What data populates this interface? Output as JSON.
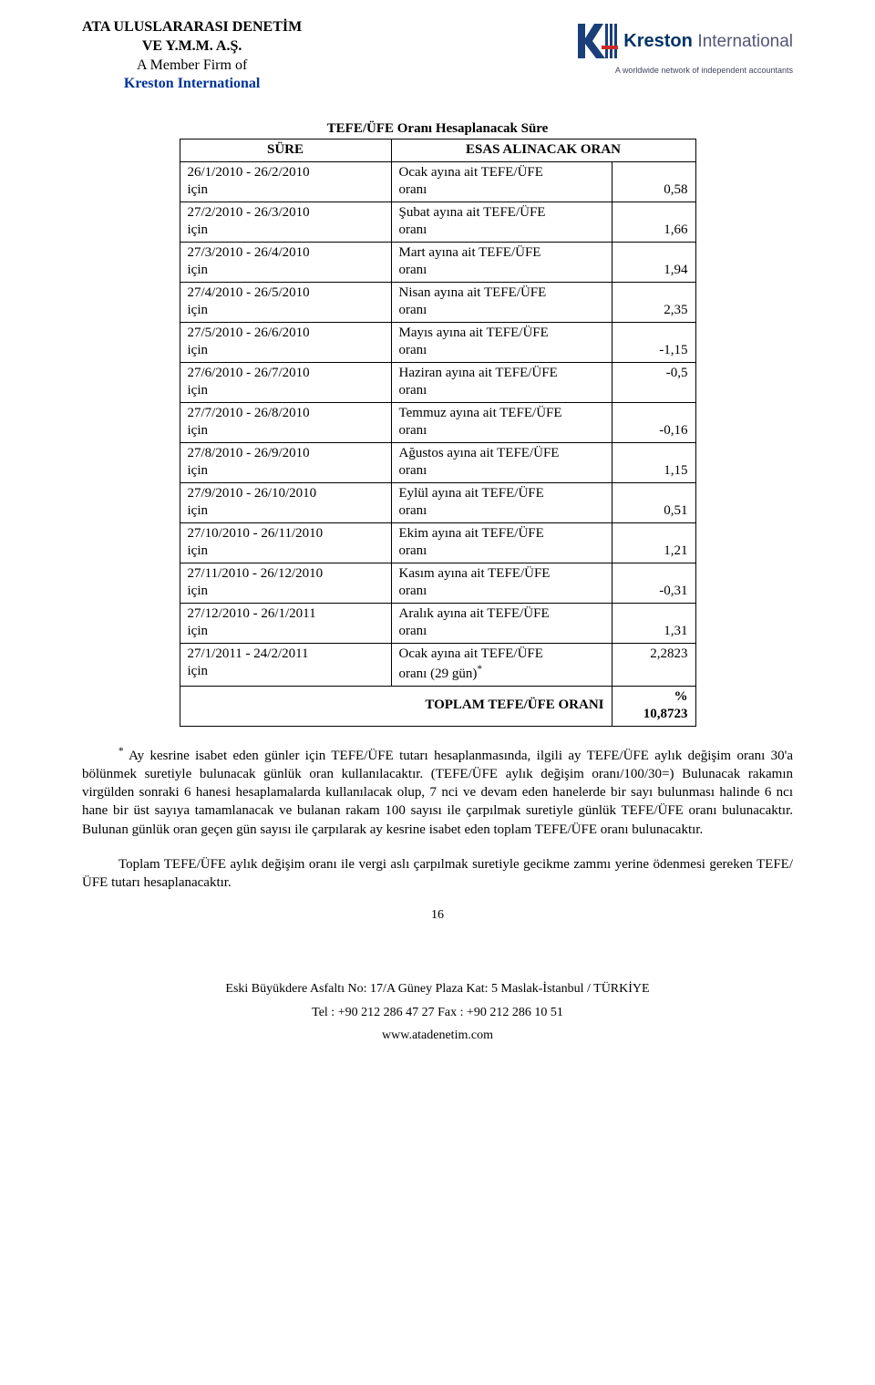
{
  "header": {
    "line1": "ATA ULUSLARARASI DENETİM",
    "line2": "VE Y.M.M. A.Ş.",
    "line3": "A Member Firm of",
    "line4": "Kreston International",
    "logo_brand": "Kreston",
    "logo_brand2": "International",
    "logo_sub": "A worldwide network of independent accountants",
    "logo_colors": {
      "k": "#1a3f7a",
      "bars": "#1a3f7a",
      "accent": "#d02828"
    }
  },
  "table": {
    "caption": "TEFE/ÜFE Oranı Hesaplanacak Süre",
    "header_sure": "SÜRE",
    "header_base": "ESAS ALINACAK ORAN",
    "rows": [
      {
        "sure1": "26/1/2010 - 26/2/2010",
        "sure2": "için",
        "base1": "Ocak ayına ait TEFE/ÜFE",
        "base2": "oranı",
        "val": "0,58"
      },
      {
        "sure1": "27/2/2010 - 26/3/2010",
        "sure2": "için",
        "base1": "Şubat ayına ait TEFE/ÜFE",
        "base2": "oranı",
        "val": "1,66"
      },
      {
        "sure1": "27/3/2010 - 26/4/2010",
        "sure2": "için",
        "base1": "Mart ayına ait TEFE/ÜFE",
        "base2": "oranı",
        "val": "1,94"
      },
      {
        "sure1": "27/4/2010 - 26/5/2010",
        "sure2": "için",
        "base1": "Nisan ayına ait TEFE/ÜFE",
        "base2": "oranı",
        "val": "2,35"
      },
      {
        "sure1": "27/5/2010 - 26/6/2010",
        "sure2": "için",
        "base1": "Mayıs ayına ait TEFE/ÜFE",
        "base2": "oranı",
        "val": "-1,15"
      },
      {
        "sure1": "27/6/2010 - 26/7/2010",
        "sure2": "için",
        "base1": "Haziran ayına ait TEFE/ÜFE",
        "base2": "oranı",
        "val": "-0,5"
      },
      {
        "sure1": "27/7/2010 - 26/8/2010",
        "sure2": "için",
        "base1": "Temmuz ayına ait TEFE/ÜFE",
        "base2": "oranı",
        "val": "-0,16"
      },
      {
        "sure1": "27/8/2010 - 26/9/2010",
        "sure2": "için",
        "base1": "Ağustos ayına ait TEFE/ÜFE",
        "base2": "oranı",
        "val": "1,15"
      },
      {
        "sure1": "27/9/2010 - 26/10/2010",
        "sure2": "için",
        "base1": "Eylül ayına ait TEFE/ÜFE",
        "base2": "oranı",
        "val": "0,51"
      },
      {
        "sure1": "27/10/2010 - 26/11/2010",
        "sure2": "için",
        "base1": "Ekim ayına ait TEFE/ÜFE",
        "base2": "oranı",
        "val": "1,21"
      },
      {
        "sure1": "27/11/2010 - 26/12/2010",
        "sure2": "için",
        "base1": "Kasım ayına ait TEFE/ÜFE",
        "base2": "oranı",
        "val": "-0,31"
      },
      {
        "sure1": "27/12/2010 - 26/1/2011",
        "sure2": "için",
        "base1": "Aralık ayına ait TEFE/ÜFE",
        "base2": "oranı",
        "val": "1,31"
      },
      {
        "sure1": "27/1/2011 -  24/2/2011",
        "sure2": "için",
        "base1": "Ocak ayına ait TEFE/ÜFE",
        "base2": "oranı (29 gün)",
        "base2_sup": "*",
        "val": "2,2823"
      }
    ],
    "total_label": "TOPLAM TEFE/ÜFE ORANI",
    "total_top": "%",
    "total_val": "10,8723"
  },
  "body": {
    "p1_prefix_sup": "*",
    "p1": " Ay kesrine isabet eden günler için TEFE/ÜFE tutarı hesaplanmasında, ilgili ay TEFE/ÜFE aylık değişim oranı 30'a bölünmek suretiyle bulunacak günlük oran kullanılacaktır. (TEFE/ÜFE aylık değişim oranı/100/30=) Bulunacak rakamın virgülden sonraki 6 hanesi hesaplamalarda kullanılacak olup, 7 nci ve devam eden hanelerde bir sayı bulunması halinde 6 ncı hane bir üst sayıya tamamlanacak ve bulanan rakam 100 sayısı ile çarpılmak suretiyle günlük TEFE/ÜFE oranı bulunacaktır. Bulunan günlük oran geçen gün sayısı ile çarpılarak ay kesrine isabet eden toplam TEFE/ÜFE oranı bulunacaktır.",
    "p2": "Toplam TEFE/ÜFE aylık değişim oranı ile vergi aslı çarpılmak suretiyle gecikme zammı yerine ödenmesi gereken TEFE/ÜFE tutarı hesaplanacaktır."
  },
  "page_number": "16",
  "footer": {
    "addr": "Eski Büyükdere Asfaltı No: 17/A Güney Plaza Kat: 5 Maslak-İstanbul / TÜRKİYE",
    "tel": "Tel  :  +90 212 286 47 27  Fax  :  +90 212 286 10 51",
    "web": "www.atadenetim.com"
  }
}
